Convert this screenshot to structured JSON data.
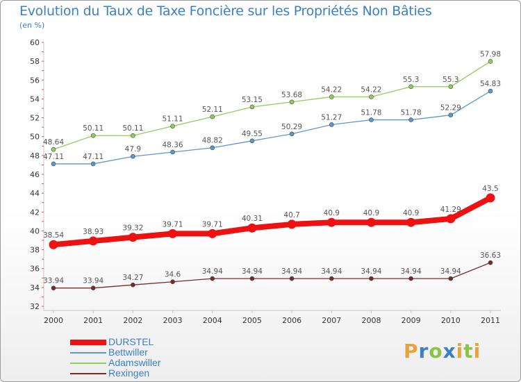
{
  "title": "Evolution du Taux de Taxe Foncière sur les Propriétés Non Bâties",
  "unit": "(en %)",
  "logo": {
    "text": "Proxiti",
    "letters": [
      "P",
      "r",
      "o",
      "x",
      "i",
      "t",
      "i"
    ],
    "colors": [
      "#e8a33d",
      "#3b80c6",
      "#8bc34a",
      "#3b80c6",
      "#e8a33d",
      "#8bc34a",
      "#e8a33d"
    ]
  },
  "chart_data": {
    "type": "line",
    "x": [
      "2000",
      "2001",
      "2002",
      "2003",
      "2004",
      "2005",
      "2006",
      "2007",
      "2008",
      "2009",
      "2010",
      "2011"
    ],
    "ylim": [
      32,
      60
    ],
    "yticks": [
      32,
      34,
      36,
      38,
      40,
      42,
      44,
      46,
      48,
      50,
      52,
      54,
      56,
      58,
      60
    ],
    "grid": false,
    "legend": "bottom-left",
    "series": [
      {
        "name": "DURSTEL",
        "color": "#ee1111",
        "width": 8,
        "values": [
          38.54,
          38.93,
          39.32,
          39.71,
          39.71,
          40.31,
          40.7,
          40.9,
          40.9,
          40.9,
          41.29,
          43.5
        ],
        "labels": [
          "38.54",
          "38.93",
          "39.32",
          "39.71",
          "39.71",
          "40.31",
          "40.7",
          "40.9",
          "40.9",
          "40.9",
          "41.29",
          "43.5"
        ]
      },
      {
        "name": "Bettwiller",
        "color": "#5b97cf",
        "width": 1.3,
        "values": [
          47.11,
          47.11,
          47.9,
          48.36,
          48.82,
          49.55,
          50.29,
          51.27,
          51.78,
          51.78,
          52.29,
          54.83
        ],
        "labels": [
          "47.11",
          "47.11",
          "47.9",
          "48.36",
          "48.82",
          "49.55",
          "50.29",
          "51.27",
          "51.78",
          "51.78",
          "52.29",
          "54.83"
        ]
      },
      {
        "name": "Adamswiller",
        "color": "#8ed05a",
        "width": 1.3,
        "values": [
          48.64,
          50.11,
          50.11,
          51.11,
          52.11,
          53.15,
          53.68,
          54.22,
          54.22,
          55.3,
          55.3,
          57.98
        ],
        "labels": [
          "48.64",
          "50.11",
          "50.11",
          "51.11",
          "52.11",
          "53.15",
          "53.68",
          "54.22",
          "54.22",
          "55.3",
          "55.3",
          "57.98"
        ]
      },
      {
        "name": "Rexingen",
        "color": "#7a2a2a",
        "width": 1.3,
        "values": [
          33.94,
          33.94,
          34.27,
          34.6,
          34.94,
          34.94,
          34.94,
          34.94,
          34.94,
          34.94,
          34.94,
          36.63
        ],
        "labels": [
          "33.94",
          "33.94",
          "34.27",
          "34.6",
          "34.94",
          "34.94",
          "34.94",
          "34.94",
          "34.94",
          "34.94",
          "34.94",
          "36.63"
        ]
      }
    ]
  }
}
